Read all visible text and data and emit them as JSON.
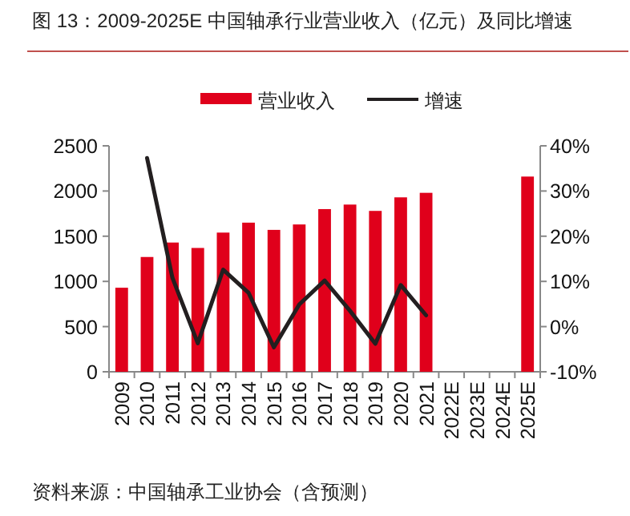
{
  "chart_data": {
    "type": "bar",
    "title": "图 13：2009-2025E 中国轴承行业营业收入（亿元）及同比增速",
    "categories": [
      "2009",
      "2010",
      "2011",
      "2012",
      "2013",
      "2014",
      "2015",
      "2016",
      "2017",
      "2018",
      "2019",
      "2020",
      "2021",
      "2022E",
      "2023E",
      "2024E",
      "2025E"
    ],
    "series": [
      {
        "name": "营业收入",
        "color": "#e0001b",
        "values": [
          930,
          1270,
          1430,
          1370,
          1540,
          1650,
          1570,
          1630,
          1800,
          1850,
          1780,
          1930,
          1980,
          null,
          null,
          null,
          2160
        ]
      },
      {
        "name": "增速",
        "type": "line",
        "axis": "y2",
        "color": "#231f20",
        "values": [
          null,
          37.3,
          10.8,
          -3.7,
          12.6,
          7.5,
          -4.6,
          4.9,
          10.2,
          3.5,
          -3.8,
          9.2,
          2.5,
          null,
          null,
          null,
          null
        ]
      }
    ],
    "ylim": [
      0,
      2500
    ],
    "yticks": [
      0,
      500,
      1000,
      1500,
      2000,
      2500
    ],
    "y2lim": [
      -10,
      40
    ],
    "y2ticks": [
      {
        "value": -10,
        "label": "-10%"
      },
      {
        "value": 0,
        "label": "0%"
      },
      {
        "value": 10,
        "label": "10%"
      },
      {
        "value": 20,
        "label": "20%"
      },
      {
        "value": 30,
        "label": "30%"
      },
      {
        "value": 40,
        "label": "40%"
      }
    ],
    "legend": "top",
    "grid": false,
    "marker": "none",
    "line_style": "solid",
    "annotations": [
      "资料来源：中国轴承工业协会（含预测）"
    ]
  }
}
